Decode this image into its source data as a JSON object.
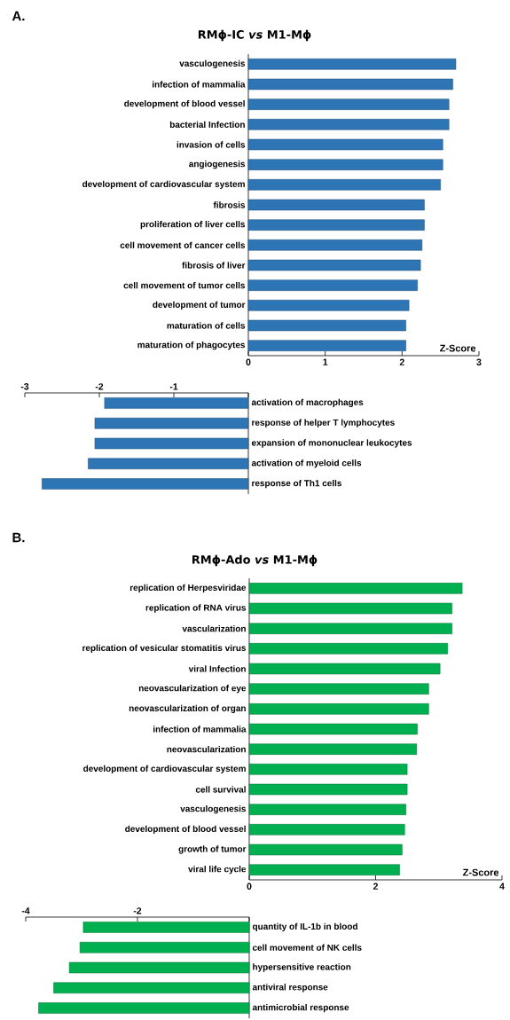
{
  "chart_data": [
    {
      "type": "bar",
      "orientation": "horizontal",
      "title": "RMϕ-IC *vs* M1-Mϕ",
      "xlabel": "Z-Score",
      "annotations": [
        "A."
      ],
      "categories": [
        "vasculogenesis",
        "infection of mammalia",
        "development of blood vessel",
        "bacterial Infection",
        "invasion of cells",
        "angiogenesis",
        "development of cardiovascular system",
        "fibrosis",
        "proliferation of liver cells",
        "cell movement of cancer cells",
        "fibrosis of liver",
        "cell movement of tumor cells",
        "development of tumor",
        "maturation of cells",
        "maturation of phagocytes"
      ],
      "values": [
        2.7,
        2.66,
        2.61,
        2.61,
        2.53,
        2.53,
        2.5,
        2.29,
        2.29,
        2.26,
        2.24,
        2.2,
        2.09,
        2.05,
        2.05
      ],
      "color": "#2e75b6",
      "xlim": [
        0,
        3
      ],
      "xticks": [
        0,
        1,
        2,
        3
      ]
    },
    {
      "type": "bar",
      "orientation": "horizontal",
      "categories": [
        "activation of macrophages",
        "response of helper T lymphocytes",
        "expansion of mononuclear leukocytes",
        "activation of myeloid cells",
        "response of Th1 cells"
      ],
      "values": [
        -1.93,
        -2.06,
        -2.06,
        -2.15,
        -2.77
      ],
      "color": "#2e75b6",
      "xlim": [
        -3,
        0
      ],
      "xticks": [
        -3,
        -2,
        -1,
        {
          "value": 0,
          "label": null
        }
      ]
    },
    {
      "type": "bar",
      "orientation": "horizontal",
      "title": "RMϕ-Ado *vs* M1-Mϕ",
      "xlabel": "Z-Score",
      "annotations": [
        "B."
      ],
      "categories": [
        "replication of Herpesviridae",
        "replication of RNA virus",
        "vascularization",
        "replication of vesicular stomatitis virus",
        "viral Infection",
        "neovascularization of eye",
        "neovascularization of organ",
        "infection of mammalia",
        "neovascularization",
        "development of cardiovascular system",
        "cell survival",
        "vasculogenesis",
        "development of blood vessel",
        "growth of tumor",
        "viral life cycle"
      ],
      "values": [
        3.37,
        3.21,
        3.21,
        3.14,
        3.02,
        2.84,
        2.84,
        2.66,
        2.65,
        2.5,
        2.5,
        2.48,
        2.46,
        2.42,
        2.38
      ],
      "color": "#00b050",
      "xlim": [
        0,
        4
      ],
      "xticks": [
        0,
        2,
        4
      ]
    },
    {
      "type": "bar",
      "orientation": "horizontal",
      "categories": [
        "quantity of IL-1b in blood",
        "cell movement of NK cells",
        "hypersensitive reaction",
        "antiviral response",
        "antimicrobial response"
      ],
      "values": [
        -2.97,
        -3.03,
        -3.22,
        -3.5,
        -3.77
      ],
      "color": "#00b050",
      "xlim": [
        -4,
        0
      ],
      "xticks": [
        -4,
        -2,
        {
          "value": 0,
          "label": null
        }
      ]
    }
  ]
}
